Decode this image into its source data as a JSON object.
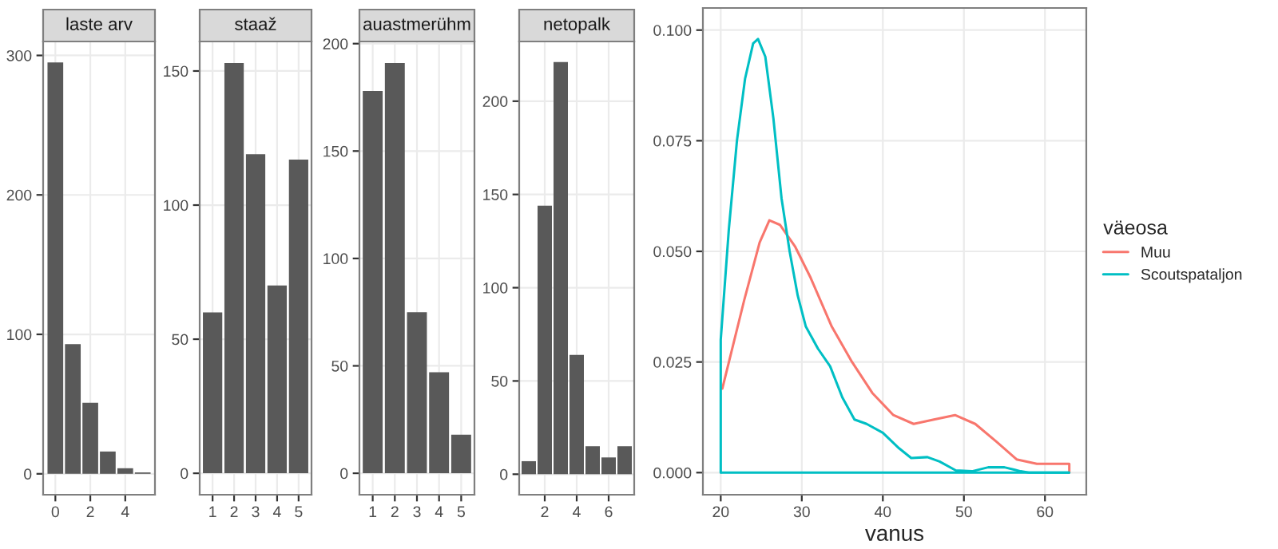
{
  "chart_data": [
    {
      "type": "bar",
      "title": "laste arv",
      "x": [
        0,
        1,
        2,
        3,
        4,
        5
      ],
      "values": [
        295,
        93,
        51,
        16,
        4,
        1
      ],
      "color": "#595959",
      "xlim": [
        -0.7,
        5.7
      ],
      "ylim": [
        -15,
        310
      ],
      "xticks": [
        0,
        2,
        4
      ],
      "yticks": [
        0,
        100,
        200,
        300
      ],
      "grid": true
    },
    {
      "type": "bar",
      "title": "staaž",
      "x": [
        1,
        2,
        3,
        4,
        5
      ],
      "values": [
        60,
        153,
        119,
        70,
        117
      ],
      "color": "#595959",
      "xlim": [
        0.4,
        5.6
      ],
      "ylim": [
        -8,
        161
      ],
      "xticks": [
        1,
        2,
        3,
        4,
        5
      ],
      "yticks": [
        0,
        50,
        100,
        150
      ],
      "grid": true
    },
    {
      "type": "bar",
      "title": "auastmerühm",
      "x": [
        1,
        2,
        3,
        4,
        5
      ],
      "values": [
        178,
        191,
        75,
        47,
        18
      ],
      "color": "#595959",
      "xlim": [
        0.4,
        5.6
      ],
      "ylim": [
        -10,
        201
      ],
      "xticks": [
        1,
        2,
        3,
        4,
        5
      ],
      "yticks": [
        0,
        50,
        100,
        150,
        200
      ],
      "grid": true
    },
    {
      "type": "bar",
      "title": "netopalk",
      "x": [
        1,
        2,
        3,
        4,
        5,
        6,
        7
      ],
      "values": [
        7,
        144,
        221,
        64,
        15,
        9,
        15
      ],
      "color": "#595959",
      "xlim": [
        0.4,
        7.6
      ],
      "ylim": [
        -11,
        232
      ],
      "xticks": [
        2,
        4,
        6
      ],
      "yticks": [
        0,
        50,
        100,
        150,
        200
      ],
      "grid": true
    },
    {
      "type": "line",
      "xlabel": "vanus",
      "legend_title": "väeosa",
      "legend": "right",
      "grid": true,
      "xlim": [
        17.8,
        65.1
      ],
      "ylim": [
        -0.005,
        0.105
      ],
      "xticks": [
        20,
        30,
        40,
        50,
        60
      ],
      "yticks": [
        {
          "value": 0,
          "label": "0.000"
        },
        {
          "value": 0.025,
          "label": "0.025"
        },
        {
          "value": 0.05,
          "label": "0.050"
        },
        {
          "value": 0.075,
          "label": "0.075"
        },
        {
          "value": 0.1,
          "label": "0.100"
        }
      ],
      "series": [
        {
          "name": "Muu",
          "color": "#f8766d",
          "x": [
            20.2,
            22.9,
            24.8,
            26,
            27.3,
            29.2,
            31.1,
            33.7,
            36.2,
            38.7,
            41.3,
            43.8,
            46.3,
            48.9,
            51.4,
            54,
            56.5,
            59,
            63,
            63
          ],
          "values": [
            0.019,
            0.039,
            0.052,
            0.057,
            0.056,
            0.051,
            0.044,
            0.033,
            0.025,
            0.018,
            0.013,
            0.011,
            0.012,
            0.013,
            0.011,
            0.007,
            0.003,
            0.002,
            0.002,
            0
          ]
        },
        {
          "name": "Scoutspataljon",
          "color": "#00bfc4",
          "x": [
            20,
            20,
            21,
            22,
            23,
            24,
            24.6,
            25.5,
            26.5,
            27.5,
            28.5,
            29.5,
            30.5,
            32,
            33.5,
            35,
            36.5,
            38,
            40,
            42,
            43.5,
            45.5,
            47,
            49,
            51,
            53,
            55,
            57,
            58,
            63
          ],
          "values": [
            0,
            0.03,
            0.055,
            0.075,
            0.089,
            0.097,
            0.098,
            0.094,
            0.08,
            0.062,
            0.05,
            0.04,
            0.033,
            0.028,
            0.024,
            0.017,
            0.012,
            0.011,
            0.009,
            0.0055,
            0.0033,
            0.0035,
            0.0025,
            0.0005,
            0.0003,
            0.0012,
            0.0012,
            0.0003,
            0,
            0
          ]
        }
      ],
      "ref_lines": [
        {
          "axis": "y",
          "value": 0,
          "color": "#00bfc4"
        }
      ]
    }
  ]
}
